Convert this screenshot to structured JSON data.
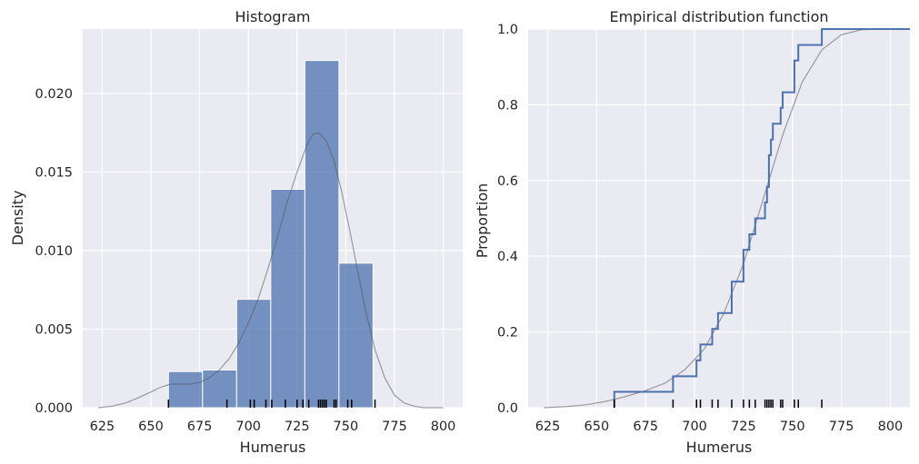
{
  "chart_data": [
    {
      "type": "histogram",
      "title": "Histogram",
      "xlabel": "Humerus",
      "ylabel": "Density",
      "xlim": [
        615,
        810
      ],
      "ylim": [
        0,
        0.0241
      ],
      "xticks": [
        625,
        650,
        675,
        700,
        725,
        750,
        775,
        800
      ],
      "xtick_labels": [
        "625",
        "650",
        "675",
        "700",
        "725",
        "750",
        "775",
        "800"
      ],
      "yticks": [
        0,
        0.005,
        0.01,
        0.015,
        0.02
      ],
      "ytick_labels": [
        "0.000",
        "0.005",
        "0.010",
        "0.015",
        "0.020"
      ],
      "grid": true,
      "bins": [
        {
          "x0": 659,
          "x1": 676.5,
          "value": 0.0023
        },
        {
          "x0": 676.5,
          "x1": 694,
          "value": 0.0024
        },
        {
          "x0": 694,
          "x1": 711.5,
          "value": 0.0069
        },
        {
          "x0": 711.5,
          "x1": 729,
          "value": 0.0139
        },
        {
          "x0": 729,
          "x1": 746.5,
          "value": 0.0221
        },
        {
          "x0": 746.5,
          "x1": 764,
          "value": 0.0092
        }
      ],
      "kde": {
        "x": [
          623,
          630,
          637,
          643,
          650,
          655,
          660,
          665,
          670,
          675,
          680,
          685,
          690,
          695,
          700,
          705,
          710,
          715,
          720,
          725,
          730,
          733,
          736,
          740,
          744,
          748,
          752,
          756,
          760,
          765,
          770,
          775,
          780,
          785,
          790,
          795,
          800
        ],
        "y": [
          0,
          0.0001,
          0.0003,
          0.0006,
          0.001,
          0.0013,
          0.0015,
          0.0015,
          0.0015,
          0.0016,
          0.0019,
          0.0024,
          0.0031,
          0.0041,
          0.0054,
          0.0069,
          0.0088,
          0.0109,
          0.0131,
          0.015,
          0.0167,
          0.0174,
          0.0175,
          0.017,
          0.0157,
          0.0137,
          0.0113,
          0.0088,
          0.0063,
          0.0037,
          0.0019,
          0.0008,
          0.0003,
          0.0001,
          0,
          0,
          0
        ]
      },
      "rug": [
        659,
        689,
        701,
        703,
        709,
        712,
        719,
        725,
        728,
        731,
        736,
        737,
        738,
        739,
        740,
        744,
        745,
        751,
        753,
        765
      ]
    },
    {
      "type": "ecdf",
      "title": "Empirical distribution function",
      "xlabel": "Humerus",
      "ylabel": "Proportion",
      "xlim": [
        615,
        810
      ],
      "ylim": [
        0,
        1
      ],
      "xticks": [
        625,
        650,
        675,
        700,
        725,
        750,
        775,
        800
      ],
      "xtick_labels": [
        "625",
        "650",
        "675",
        "700",
        "725",
        "750",
        "775",
        "800"
      ],
      "yticks": [
        0,
        0.2,
        0.4,
        0.6,
        0.8,
        1
      ],
      "ytick_labels": [
        "0.0",
        "0.2",
        "0.4",
        "0.6",
        "0.8",
        "1.0"
      ],
      "grid": true,
      "ecdf_x": [
        659,
        689,
        701,
        703,
        709,
        712,
        719,
        725,
        728,
        731,
        736,
        737,
        738,
        739,
        740,
        744,
        745,
        751,
        753,
        765
      ],
      "ecdf_y": [
        0.042,
        0.083,
        0.125,
        0.167,
        0.208,
        0.25,
        0.333,
        0.417,
        0.458,
        0.5,
        0.542,
        0.583,
        0.667,
        0.708,
        0.75,
        0.792,
        0.833,
        0.917,
        0.958,
        1.0
      ],
      "cdf": {
        "x": [
          623,
          635,
          645,
          655,
          665,
          675,
          685,
          695,
          705,
          715,
          725,
          735,
          745,
          755,
          765,
          775,
          785,
          795,
          800
        ],
        "y": [
          0,
          0.003,
          0.008,
          0.017,
          0.03,
          0.045,
          0.065,
          0.1,
          0.155,
          0.25,
          0.38,
          0.55,
          0.72,
          0.86,
          0.945,
          0.985,
          0.998,
          1.0,
          1.0
        ]
      },
      "rug": [
        659,
        689,
        701,
        703,
        709,
        712,
        719,
        725,
        728,
        731,
        736,
        737,
        738,
        739,
        740,
        744,
        745,
        751,
        753,
        765
      ]
    }
  ],
  "colors": {
    "plot_bg": "#eaeaf2",
    "grid": "#ffffff",
    "bar_fill": "#4c72b0",
    "bar_edge": "#ffffff",
    "kde_line": "#999999",
    "ecdf_line": "#4c72b0",
    "rug": "#000000",
    "text": "#262626"
  }
}
